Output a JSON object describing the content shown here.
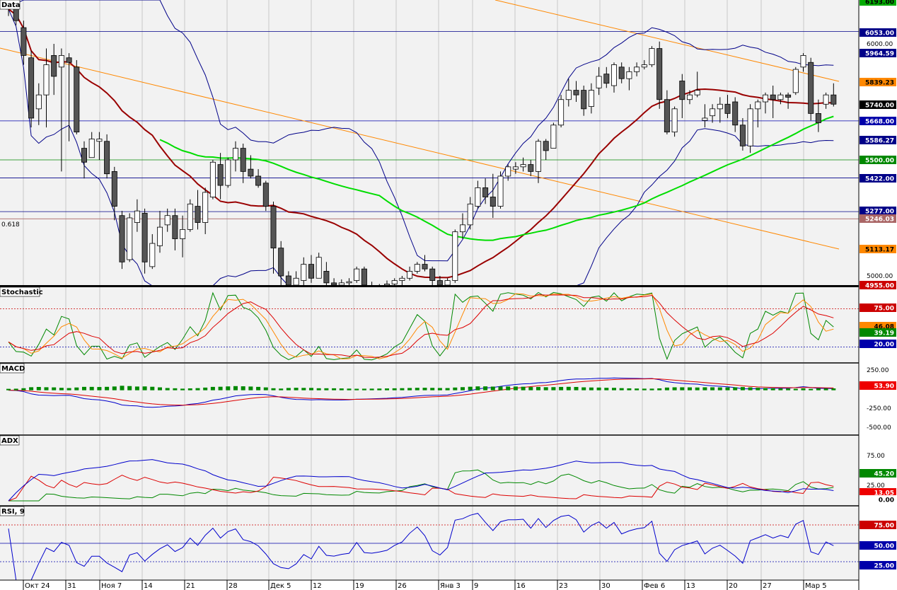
{
  "panels": {
    "price": {
      "title": "Data"
    },
    "stoch": {
      "title": "Stochastic"
    },
    "macd": {
      "title": "MACD"
    },
    "adx": {
      "title": "ADX"
    },
    "rsi": {
      "title": "RSI, 9"
    }
  },
  "dates": [
    "Окт 24",
    "31",
    "Ноя 7",
    "14",
    "21",
    "28",
    "Дек 5",
    "12",
    "19",
    "26",
    "Янв 3",
    "9",
    "16",
    "23",
    "30",
    "Фев 6",
    "13",
    "20",
    "27",
    "Мар 5"
  ],
  "fib_label": "0.618",
  "price_axis_labels": [
    "6000.00",
    "5000.00"
  ],
  "price_tags": [
    {
      "text": "6193.00",
      "v": 6193,
      "color": "#00aa00"
    },
    {
      "text": "6053.00",
      "v": 6053,
      "color": "#000088"
    },
    {
      "text": "5964.59",
      "v": 5964.59,
      "color": "#000088"
    },
    {
      "text": "5839.23",
      "v": 5839.23,
      "color": "#ff8800"
    },
    {
      "text": "5740.00",
      "v": 5740,
      "color": "#000000"
    },
    {
      "text": "5668.00",
      "v": 5668,
      "color": "#0000aa"
    },
    {
      "text": "5586.27",
      "v": 5586.27,
      "color": "#000088"
    },
    {
      "text": "5500.00",
      "v": 5500,
      "color": "#008800"
    },
    {
      "text": "5422.00",
      "v": 5422,
      "color": "#000088"
    },
    {
      "text": "5277.00",
      "v": 5277,
      "color": "#000088"
    },
    {
      "text": "5246.03",
      "v": 5246.03,
      "color": "#aa6666"
    },
    {
      "text": "5113.17",
      "v": 5113.17,
      "color": "#ff8800"
    },
    {
      "text": "4955.00",
      "v": 4955,
      "color": "#cc0000"
    }
  ],
  "stoch_tags": [
    {
      "text": "75.00",
      "v": 75,
      "color": "#cc0000"
    },
    {
      "text": "46.08",
      "v": 46.08,
      "color": "#ff8800"
    },
    {
      "text": "39.19",
      "v": 39.19,
      "color": "#008800"
    },
    {
      "text": "20.00",
      "v": 20,
      "color": "#0000aa"
    }
  ],
  "macd_axis_labels": [
    "250.00",
    "-250.00",
    "-500.00"
  ],
  "macd_tags": [
    {
      "text": "53.90",
      "v": 53.9,
      "color": "#ee0000"
    }
  ],
  "adx_axis_labels": [
    "75.00",
    "25.00"
  ],
  "adx_tags": [
    {
      "text": "45.20",
      "v": 45.2,
      "color": "#008800"
    },
    {
      "text": "13.05",
      "v": 13.05,
      "color": "#ee0000"
    },
    {
      "text": "0.00",
      "v": 0,
      "color": "#ffffff"
    }
  ],
  "rsi_tags": [
    {
      "text": "75.00",
      "v": 75,
      "color": "#cc0000"
    },
    {
      "text": "50.00",
      "v": 50,
      "color": "#0000aa"
    },
    {
      "text": "25.00",
      "v": 25,
      "color": "#0000aa"
    }
  ],
  "colors": {
    "candle_up": "#ffffff",
    "candle_down": "#555555",
    "bollinger": "#000088",
    "ma_red": "#990000",
    "ma_green": "#00dd00",
    "trend_orange": "#ff8800",
    "grid": "#c8c8c8",
    "bg": "#f2f2f2"
  },
  "chart_data": [
    {
      "type": "candlestick",
      "title": "Data",
      "ylim": [
        4955,
        6193
      ],
      "horizontal_levels": [
        6053,
        5668,
        5500,
        5422,
        5277,
        5246.03
      ],
      "ohlc": [
        [
          6200,
          6230,
          6120,
          6150
        ],
        [
          6160,
          6180,
          6080,
          6100
        ],
        [
          6070,
          6100,
          5910,
          5950
        ],
        [
          5940,
          5970,
          5640,
          5680
        ],
        [
          5720,
          5830,
          5650,
          5780
        ],
        [
          5780,
          5980,
          5640,
          5910
        ],
        [
          5950,
          6000,
          5780,
          5860
        ],
        [
          5900,
          5980,
          5450,
          5950
        ],
        [
          5940,
          5960,
          5580,
          5920
        ],
        [
          5900,
          5930,
          5610,
          5620
        ],
        [
          5550,
          5580,
          5420,
          5490
        ],
        [
          5510,
          5620,
          5510,
          5590
        ],
        [
          5580,
          5620,
          5500,
          5590
        ],
        [
          5580,
          5610,
          5420,
          5440
        ],
        [
          5450,
          5470,
          5240,
          5300
        ],
        [
          5260,
          5280,
          5030,
          5060
        ],
        [
          5070,
          5270,
          5060,
          5250
        ],
        [
          5230,
          5330,
          5190,
          5280
        ],
        [
          5270,
          5290,
          5010,
          5060
        ],
        [
          5040,
          5180,
          5030,
          5140
        ],
        [
          5130,
          5280,
          5100,
          5210
        ],
        [
          5220,
          5290,
          5190,
          5260
        ],
        [
          5260,
          5290,
          5110,
          5160
        ],
        [
          5160,
          5260,
          5080,
          5200
        ],
        [
          5200,
          5330,
          5190,
          5310
        ],
        [
          5300,
          5370,
          5200,
          5230
        ],
        [
          5230,
          5380,
          5180,
          5360
        ],
        [
          5340,
          5500,
          5330,
          5490
        ],
        [
          5480,
          5530,
          5330,
          5390
        ],
        [
          5390,
          5510,
          5380,
          5500
        ],
        [
          5500,
          5580,
          5450,
          5550
        ],
        [
          5550,
          5570,
          5400,
          5450
        ],
        [
          5460,
          5520,
          5420,
          5430
        ],
        [
          5430,
          5460,
          5380,
          5390
        ],
        [
          5400,
          5410,
          5280,
          5300
        ],
        [
          5300,
          5320,
          5010,
          5120
        ],
        [
          5120,
          5150,
          4950,
          5000
        ],
        [
          5000,
          5020,
          4955,
          4960
        ],
        [
          4960,
          5020,
          4955,
          4990
        ],
        [
          4980,
          5080,
          4960,
          5050
        ],
        [
          5050,
          5090,
          4970,
          4990
        ],
        [
          4990,
          5100,
          4990,
          5080
        ],
        [
          5020,
          5060,
          4960,
          4970
        ],
        [
          4970,
          4990,
          4950,
          4960
        ],
        [
          4960,
          4985,
          4950,
          4970
        ],
        [
          4970,
          4990,
          4960,
          4975
        ],
        [
          4980,
          5040,
          4970,
          5030
        ],
        [
          5030,
          5040,
          4955,
          4960
        ],
        [
          4960,
          4975,
          4950,
          4955
        ],
        [
          4955,
          4965,
          4950,
          4960
        ],
        [
          4960,
          4980,
          4955,
          4965
        ],
        [
          4965,
          4990,
          4955,
          4980
        ],
        [
          4980,
          5000,
          4960,
          4990
        ],
        [
          4990,
          5040,
          4980,
          5020
        ],
        [
          5020,
          5060,
          5010,
          5050
        ],
        [
          5050,
          5090,
          5020,
          5030
        ],
        [
          5030,
          5040,
          4960,
          4980
        ],
        [
          4980,
          5000,
          4950,
          4960
        ],
        [
          4960,
          4990,
          4950,
          4980
        ],
        [
          4980,
          5200,
          4970,
          5190
        ],
        [
          5190,
          5270,
          5160,
          5220
        ],
        [
          5220,
          5340,
          5200,
          5310
        ],
        [
          5300,
          5410,
          5290,
          5380
        ],
        [
          5380,
          5420,
          5310,
          5340
        ],
        [
          5340,
          5440,
          5250,
          5300
        ],
        [
          5300,
          5450,
          5290,
          5430
        ],
        [
          5430,
          5480,
          5410,
          5470
        ],
        [
          5460,
          5490,
          5440,
          5470
        ],
        [
          5470,
          5510,
          5450,
          5480
        ],
        [
          5480,
          5500,
          5430,
          5450
        ],
        [
          5450,
          5590,
          5400,
          5580
        ],
        [
          5580,
          5590,
          5500,
          5540
        ],
        [
          5550,
          5660,
          5550,
          5650
        ],
        [
          5650,
          5780,
          5640,
          5760
        ],
        [
          5760,
          5850,
          5730,
          5800
        ],
        [
          5800,
          5840,
          5750,
          5780
        ],
        [
          5800,
          5820,
          5690,
          5720
        ],
        [
          5730,
          5830,
          5700,
          5800
        ],
        [
          5810,
          5900,
          5780,
          5860
        ],
        [
          5870,
          5900,
          5810,
          5830
        ],
        [
          5820,
          5920,
          5790,
          5910
        ],
        [
          5900,
          5920,
          5830,
          5850
        ],
        [
          5850,
          5900,
          5800,
          5880
        ],
        [
          5880,
          5920,
          5860,
          5900
        ],
        [
          5900,
          5930,
          5890,
          5910
        ],
        [
          5910,
          5990,
          5900,
          5980
        ],
        [
          5980,
          6010,
          5720,
          5760
        ],
        [
          5760,
          5800,
          5610,
          5620
        ],
        [
          5620,
          5730,
          5600,
          5720
        ],
        [
          5840,
          5870,
          5680,
          5760
        ],
        [
          5760,
          5800,
          5740,
          5780
        ],
        [
          5780,
          5880,
          5770,
          5800
        ],
        [
          5670,
          5740,
          5640,
          5680
        ],
        [
          5690,
          5740,
          5660,
          5720
        ],
        [
          5720,
          5770,
          5660,
          5740
        ],
        [
          5740,
          5780,
          5680,
          5700
        ],
        [
          5750,
          5770,
          5620,
          5650
        ],
        [
          5650,
          5680,
          5540,
          5560
        ],
        [
          5560,
          5740,
          5530,
          5720
        ],
        [
          5720,
          5760,
          5640,
          5750
        ],
        [
          5750,
          5790,
          5700,
          5780
        ],
        [
          5780,
          5820,
          5680,
          5760
        ],
        [
          5760,
          5790,
          5740,
          5780
        ],
        [
          5780,
          5790,
          5720,
          5770
        ],
        [
          5790,
          5900,
          5780,
          5890
        ],
        [
          5900,
          5960,
          5880,
          5950
        ],
        [
          5920,
          5940,
          5670,
          5700
        ],
        [
          5700,
          5760,
          5620,
          5660
        ],
        [
          5740,
          5790,
          5720,
          5780
        ],
        [
          5780,
          5830,
          5730,
          5740
        ]
      ]
    },
    {
      "type": "line",
      "title": "Stochastic",
      "ylim": [
        0,
        100
      ],
      "levels": [
        75,
        20
      ],
      "last_values": [
        46.08,
        39.19
      ]
    },
    {
      "type": "line",
      "title": "MACD",
      "ylim": [
        -500,
        250
      ],
      "last_value": 53.9
    },
    {
      "type": "line",
      "title": "ADX",
      "ylim": [
        0,
        100
      ],
      "last_values": [
        45.2,
        13.05,
        0
      ]
    },
    {
      "type": "line",
      "title": "RSI, 9",
      "ylim": [
        0,
        100
      ],
      "levels": [
        75,
        50,
        25
      ]
    }
  ]
}
